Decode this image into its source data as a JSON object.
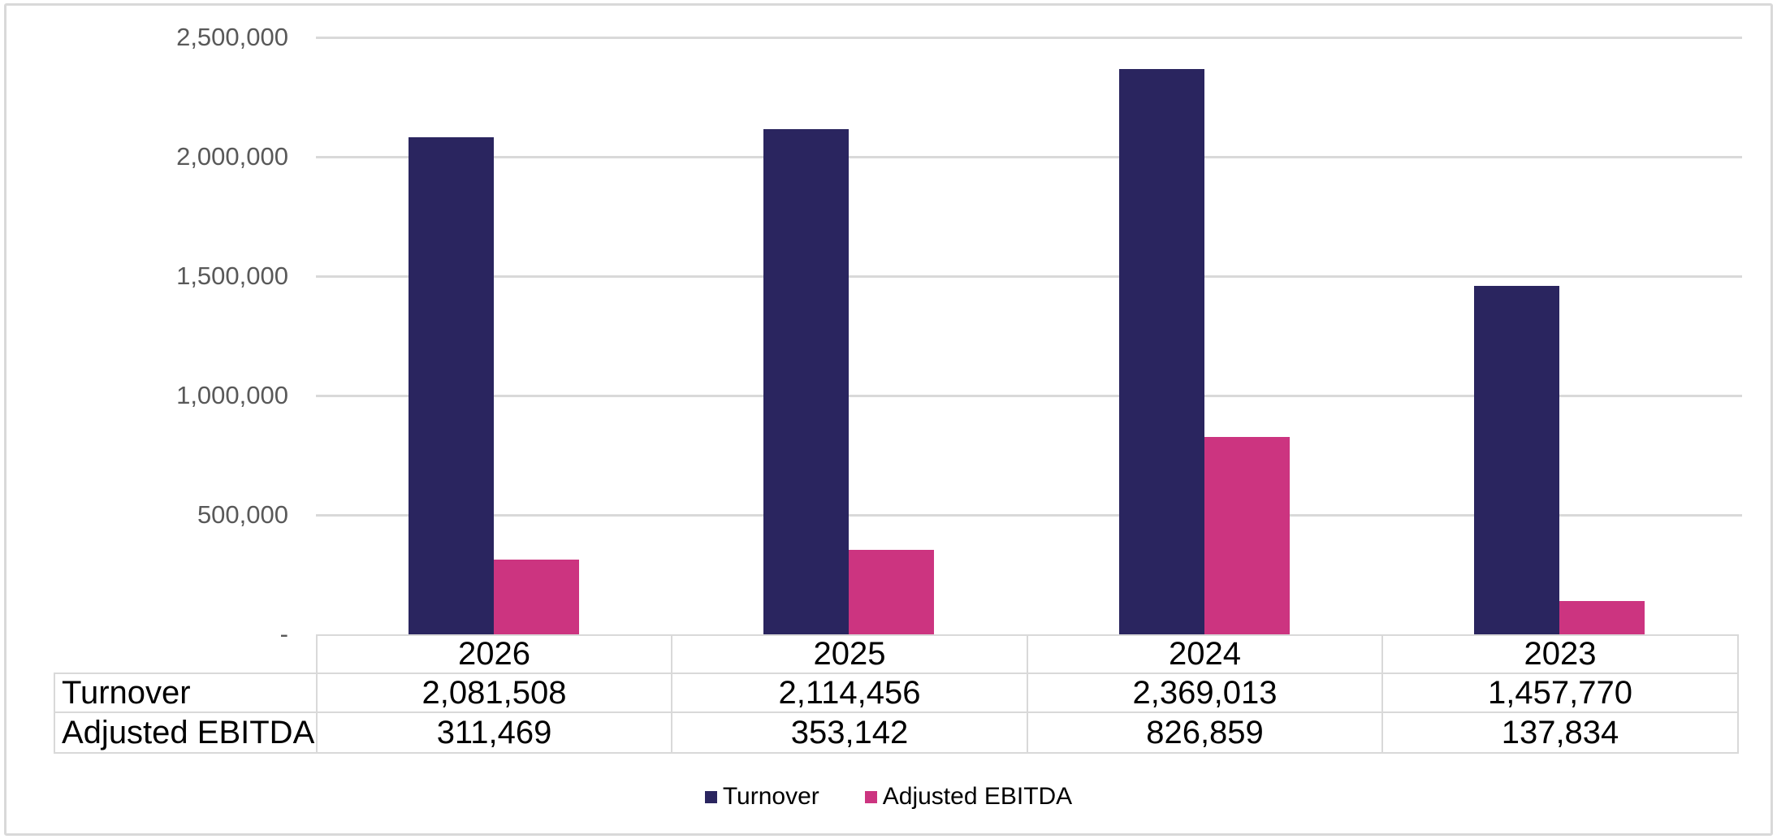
{
  "chart_data": {
    "type": "bar",
    "title": "",
    "xlabel": "",
    "ylabel": "",
    "categories": [
      "2026",
      "2025",
      "2024",
      "2023"
    ],
    "series": [
      {
        "name": "Turnover",
        "color": "#2a255f",
        "values": [
          2081508,
          2114456,
          2369013,
          1457770
        ],
        "values_formatted": [
          "2,081,508",
          "2,114,456",
          "2,369,013",
          "1,457,770"
        ]
      },
      {
        "name": "Adjusted EBITDA",
        "color": "#cc3480",
        "values": [
          311469,
          353142,
          826859,
          137834
        ],
        "values_formatted": [
          "311,469",
          "353,142",
          "826,859",
          "137,834"
        ]
      }
    ],
    "ylim": [
      0,
      2500000
    ],
    "ytick_step": 500000,
    "yticks": [
      {
        "value": 2500000,
        "label": "2,500,000"
      },
      {
        "value": 2000000,
        "label": "2,000,000"
      },
      {
        "value": 1500000,
        "label": "1,500,000"
      },
      {
        "value": 1000000,
        "label": "1,000,000"
      },
      {
        "value": 500000,
        "label": "500,000"
      },
      {
        "value": 0,
        "label": "-"
      }
    ],
    "grid": true,
    "legend_position": "bottom",
    "data_table_shown": true
  },
  "colors": {
    "gridline": "#d9d9d9",
    "table_border": "#d9d9d9",
    "axis_tick_text": "#595959",
    "table_text": "#000000",
    "frame_border": "#d9d9d9",
    "background": "#ffffff"
  }
}
